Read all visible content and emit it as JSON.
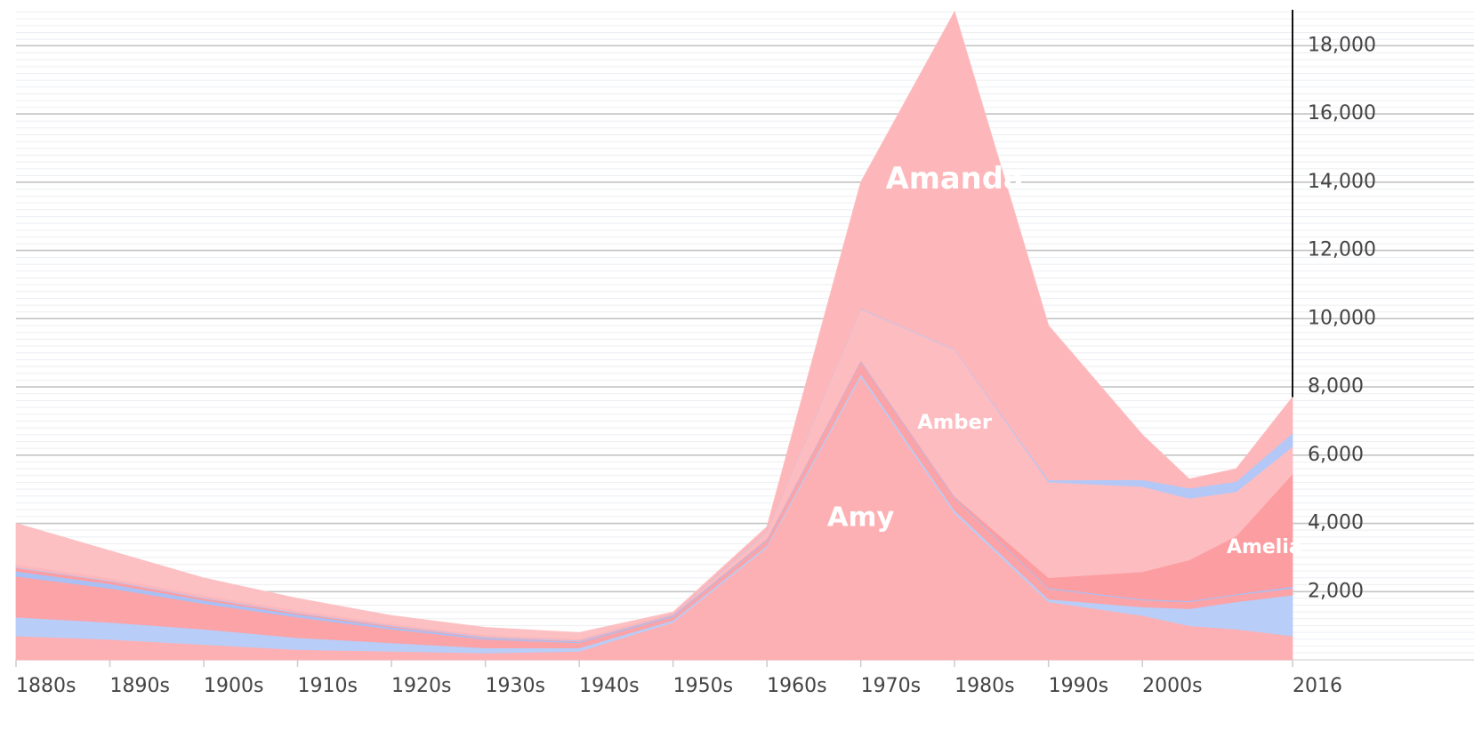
{
  "chart_data": {
    "type": "stacked_area",
    "x": [
      1880,
      1890,
      1900,
      1910,
      1920,
      1930,
      1940,
      1950,
      1960,
      1970,
      1980,
      1990,
      2000,
      2005,
      2010,
      2016
    ],
    "xlim": [
      1880,
      2016
    ],
    "xticks": [
      {
        "value": 1880,
        "label": "1880s"
      },
      {
        "value": 1890,
        "label": "1890s"
      },
      {
        "value": 1900,
        "label": "1900s"
      },
      {
        "value": 1910,
        "label": "1910s"
      },
      {
        "value": 1920,
        "label": "1920s"
      },
      {
        "value": 1930,
        "label": "1930s"
      },
      {
        "value": 1940,
        "label": "1940s"
      },
      {
        "value": 1950,
        "label": "1950s"
      },
      {
        "value": 1960,
        "label": "1960s"
      },
      {
        "value": 1970,
        "label": "1970s"
      },
      {
        "value": 1980,
        "label": "1980s"
      },
      {
        "value": 1990,
        "label": "1990s"
      },
      {
        "value": 2000,
        "label": "2000s"
      },
      2016
    ],
    "ylim": [
      0,
      19000
    ],
    "yticks": [
      {
        "value": 2000,
        "label": "2,000"
      },
      {
        "value": 4000,
        "label": "4,000"
      },
      {
        "value": 6000,
        "label": "6,000"
      },
      {
        "value": 8000,
        "label": "8,000"
      },
      {
        "value": 10000,
        "label": "10,000"
      },
      {
        "value": 12000,
        "label": "12,000"
      },
      {
        "value": 14000,
        "label": "14,000"
      },
      {
        "value": 16000,
        "label": "16,000"
      },
      {
        "value": 18000,
        "label": "18,000"
      }
    ],
    "grid": true,
    "series": [
      {
        "name": "Amy",
        "color": "#fdb0b3",
        "values": [
          700,
          600,
          450,
          300,
          250,
          200,
          250,
          1100,
          3300,
          8300,
          4300,
          1700,
          1300,
          1000,
          900,
          700
        ]
      },
      {
        "color": "#b8cdf8",
        "values": [
          550,
          500,
          450,
          350,
          250,
          150,
          100,
          60,
          50,
          80,
          80,
          80,
          250,
          500,
          800,
          1200
        ]
      },
      {
        "color": "#fba3a7",
        "values": [
          1200,
          1000,
          750,
          600,
          400,
          250,
          150,
          100,
          150,
          350,
          350,
          300,
          200,
          200,
          200,
          200
        ]
      },
      {
        "color": "#a9c0f5",
        "values": [
          150,
          130,
          100,
          80,
          60,
          40,
          30,
          30,
          30,
          30,
          30,
          30,
          30,
          30,
          30,
          50
        ]
      },
      {
        "name": "Amelia",
        "color": "#fc9da1",
        "values": [
          100,
          80,
          60,
          40,
          30,
          20,
          20,
          20,
          20,
          20,
          30,
          300,
          800,
          1200,
          1700,
          3300
        ]
      },
      {
        "name": "Amber",
        "color": "#fdbcc0",
        "values": [
          0,
          0,
          0,
          0,
          0,
          0,
          0,
          0,
          200,
          1500,
          4300,
          2800,
          2500,
          1800,
          1300,
          800
        ]
      },
      {
        "color": "#b3c8f7",
        "values": [
          20,
          20,
          20,
          20,
          20,
          20,
          20,
          20,
          20,
          20,
          20,
          60,
          200,
          300,
          300,
          400
        ]
      },
      {
        "name": "Amanda",
        "color": "#fdb6b9",
        "values": [
          80,
          70,
          70,
          60,
          50,
          50,
          50,
          50,
          130,
          3700,
          9890,
          4530,
          1320,
          270,
          370,
          1050
        ]
      },
      {
        "color": "#fcc0c3",
        "values": [
          1200,
          800,
          500,
          350,
          240,
          220,
          180,
          20,
          0,
          0,
          0,
          0,
          0,
          0,
          0,
          0
        ]
      }
    ]
  }
}
